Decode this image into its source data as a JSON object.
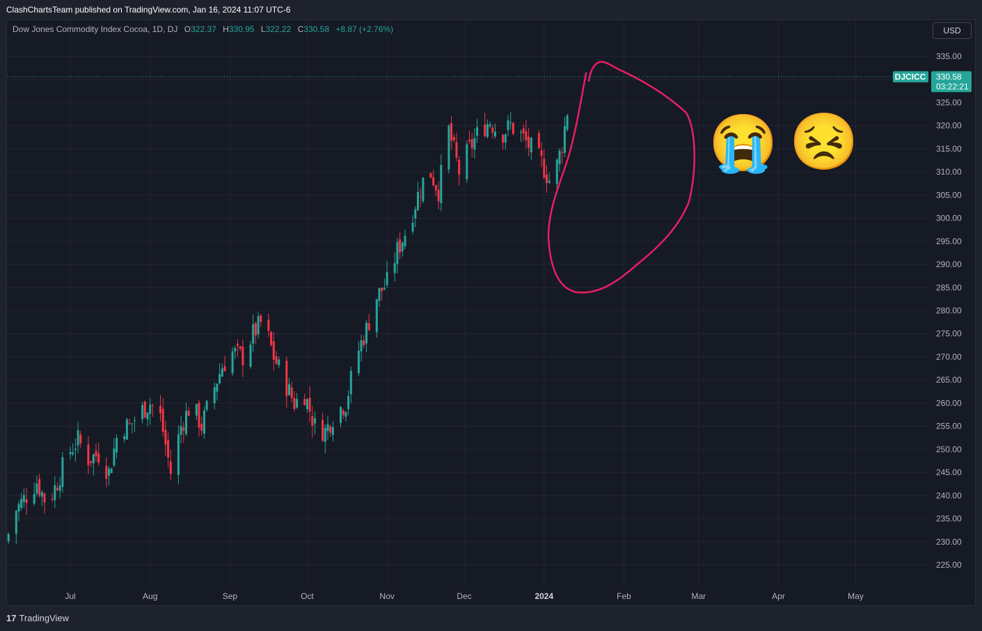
{
  "header": {
    "publisher_line": "ClashChartsTeam published on TradingView.com, Jan 16, 2024 11:07 UTC-6"
  },
  "legend": {
    "symbol": "Dow Jones Commodity Index Cocoa, 1D, DJ",
    "o_label": "O",
    "o_value": "322.37",
    "h_label": "H",
    "h_value": "330.95",
    "l_label": "L",
    "l_value": "322.22",
    "c_label": "C",
    "c_value": "330.58",
    "change": "+8.87 (+2.76%)"
  },
  "currency_button": "USD",
  "price_tag": {
    "ticker": "DJCICC",
    "price": "330.58",
    "countdown": "03:22:21"
  },
  "footer": {
    "brand": "TradingView",
    "logo_glyph": "17"
  },
  "colors": {
    "up": "#26a69a",
    "down": "#f23645",
    "background": "#161a25",
    "annotation": "#e91e63"
  },
  "emojis": {
    "crying": "😭",
    "persevering": "😣"
  },
  "chart_data": {
    "type": "candlestick",
    "title": "Dow Jones Commodity Index Cocoa, 1D, DJ",
    "ylim": [
      221,
      339
    ],
    "yticks": [
      225,
      230,
      235,
      240,
      245,
      250,
      255,
      260,
      265,
      270,
      275,
      280,
      285,
      290,
      295,
      300,
      305,
      310,
      315,
      320,
      325,
      330,
      335
    ],
    "ytick_labels": [
      "225.00",
      "230.00",
      "235.00",
      "240.00",
      "245.00",
      "250.00",
      "255.00",
      "260.00",
      "265.00",
      "270.00",
      "275.00",
      "280.00",
      "285.00",
      "290.00",
      "295.00",
      "300.00",
      "305.00",
      "310.00",
      "315.00",
      "320.00",
      "325.00",
      "330.00",
      "335.00"
    ],
    "xticks": [
      {
        "label": "Jul",
        "day": 0
      },
      {
        "label": "Aug",
        "day": 31
      },
      {
        "label": "Sep",
        "day": 62
      },
      {
        "label": "Oct",
        "day": 92
      },
      {
        "label": "Nov",
        "day": 123
      },
      {
        "label": "Dec",
        "day": 153
      },
      {
        "label": "2024",
        "day": 184,
        "bold": true
      },
      {
        "label": "Feb",
        "day": 215
      },
      {
        "label": "Mar",
        "day": 244
      },
      {
        "label": "Apr",
        "day": 275
      },
      {
        "label": "May",
        "day": 305
      }
    ],
    "last_price": 330.58,
    "close_path": [
      [
        -25,
        230
      ],
      [
        -21,
        237
      ],
      [
        -17,
        240
      ],
      [
        -13,
        243
      ],
      [
        -9,
        238
      ],
      [
        -5,
        243
      ],
      [
        -1,
        249
      ],
      [
        3,
        252
      ],
      [
        7,
        248
      ],
      [
        11,
        249
      ],
      [
        15,
        245
      ],
      [
        19,
        255
      ],
      [
        23,
        255
      ],
      [
        27,
        258
      ],
      [
        31,
        260
      ],
      [
        35,
        257
      ],
      [
        39,
        245
      ],
      [
        43,
        255
      ],
      [
        47,
        260
      ],
      [
        51,
        255
      ],
      [
        55,
        262
      ],
      [
        59,
        268
      ],
      [
        63,
        271
      ],
      [
        67,
        270
      ],
      [
        71,
        275
      ],
      [
        75,
        278
      ],
      [
        79,
        270
      ],
      [
        83,
        265
      ],
      [
        87,
        260
      ],
      [
        91,
        262
      ],
      [
        95,
        255
      ],
      [
        99,
        254
      ],
      [
        103,
        258
      ],
      [
        107,
        260
      ],
      [
        111,
        270
      ],
      [
        115,
        276
      ],
      [
        119,
        283
      ],
      [
        123,
        286
      ],
      [
        127,
        293
      ],
      [
        131,
        298
      ],
      [
        135,
        305
      ],
      [
        139,
        311
      ],
      [
        143,
        306
      ],
      [
        147,
        319
      ],
      [
        151,
        310
      ],
      [
        155,
        315
      ],
      [
        159,
        319
      ],
      [
        163,
        321
      ],
      [
        167,
        318
      ],
      [
        171,
        320
      ],
      [
        175,
        318
      ],
      [
        179,
        315
      ],
      [
        183,
        312
      ],
      [
        187,
        307
      ],
      [
        191,
        316
      ],
      [
        195,
        330.58
      ]
    ]
  },
  "annotation": {
    "shape": "circle-scribble"
  }
}
